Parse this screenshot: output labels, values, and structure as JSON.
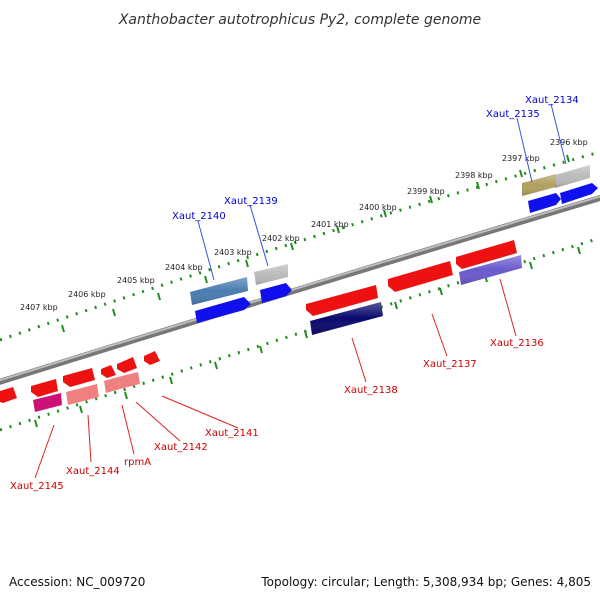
{
  "title": "Xanthobacter autotrophicus Py2, complete genome",
  "footer": {
    "accession": "Accession: NC_009720",
    "summary": "Topology: circular; Length: 5,308,934 bp; Genes: 4,805"
  },
  "colors": {
    "forward_label": "#0000cc",
    "reverse_label": "#cc0000",
    "scale_ticks": "#228b22",
    "backbone": "#888888"
  },
  "scale": {
    "unit": "kbp",
    "labels": [
      "2396 kbp",
      "2397 kbp",
      "2398 kbp",
      "2399 kbp",
      "2400 kbp",
      "2401 kbp",
      "2402 kbp",
      "2403 kbp",
      "2404 kbp",
      "2405 kbp",
      "2406 kbp",
      "2407 kbp"
    ]
  },
  "genes": {
    "forward": [
      {
        "name": "Xaut_2134",
        "strand": "+"
      },
      {
        "name": "Xaut_2135",
        "strand": "+"
      },
      {
        "name": "Xaut_2139",
        "strand": "+"
      },
      {
        "name": "Xaut_2140",
        "strand": "+"
      }
    ],
    "reverse": [
      {
        "name": "Xaut_2136",
        "strand": "-"
      },
      {
        "name": "Xaut_2137",
        "strand": "-"
      },
      {
        "name": "Xaut_2138",
        "strand": "-"
      },
      {
        "name": "Xaut_2141",
        "strand": "-"
      },
      {
        "name": "Xaut_2142",
        "strand": "-"
      },
      {
        "name": "rpmA",
        "strand": "-"
      },
      {
        "name": "Xaut_2144",
        "strand": "-"
      },
      {
        "name": "Xaut_2145",
        "strand": "-"
      }
    ]
  }
}
